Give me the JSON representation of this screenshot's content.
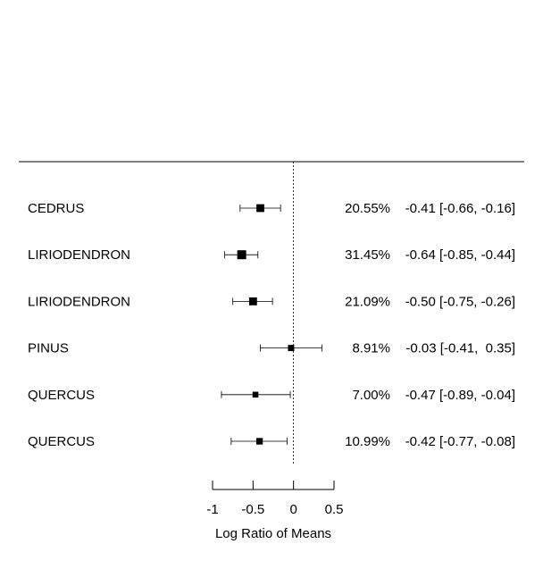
{
  "chart_data": {
    "type": "forest",
    "xlabel": "Log Ratio of Means",
    "xlim": [
      -1,
      0.5
    ],
    "xticks": [
      -1,
      -0.5,
      0,
      0.5
    ],
    "xtick_labels": [
      "-1",
      "-0.5",
      "0",
      "0.5"
    ],
    "reference_line": 0,
    "studies": [
      {
        "label": "CEDRUS",
        "weight": "20.55%",
        "estimate": -0.41,
        "lower": -0.66,
        "upper": -0.16,
        "ci_text": "-0.41 [-0.66, -0.16]"
      },
      {
        "label": "LIRIODENDRON",
        "weight": "31.45%",
        "estimate": -0.64,
        "lower": -0.85,
        "upper": -0.44,
        "ci_text": "-0.64 [-0.85, -0.44]"
      },
      {
        "label": "LIRIODENDRON",
        "weight": "21.09%",
        "estimate": -0.5,
        "lower": -0.75,
        "upper": -0.26,
        "ci_text": "-0.50 [-0.75, -0.26]"
      },
      {
        "label": "PINUS",
        "weight": "8.91%",
        "estimate": -0.03,
        "lower": -0.41,
        "upper": 0.35,
        "ci_text": "-0.03 [-0.41,  0.35]"
      },
      {
        "label": "QUERCUS",
        "weight": "7.00%",
        "estimate": -0.47,
        "lower": -0.89,
        "upper": -0.04,
        "ci_text": "-0.47 [-0.89, -0.04]"
      },
      {
        "label": "QUERCUS",
        "weight": "10.99%",
        "estimate": -0.42,
        "lower": -0.77,
        "upper": -0.08,
        "ci_text": "-0.42 [-0.77, -0.08]"
      }
    ]
  }
}
